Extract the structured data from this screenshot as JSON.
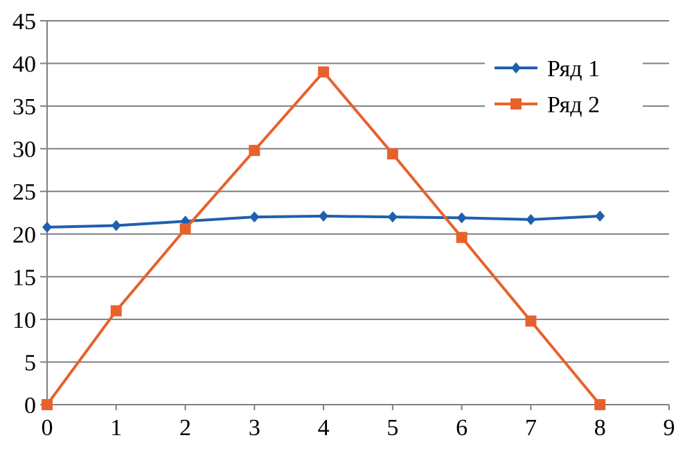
{
  "chart_data": {
    "type": "line",
    "title": "",
    "xlabel": "",
    "ylabel": "",
    "xlim": [
      0,
      9
    ],
    "ylim": [
      0,
      45
    ],
    "x_ticks": [
      0,
      1,
      2,
      3,
      4,
      5,
      6,
      7,
      8,
      9
    ],
    "y_ticks": [
      0,
      5,
      10,
      15,
      20,
      25,
      30,
      35,
      40,
      45
    ],
    "grid": "horizontal",
    "legend_position": "top-right",
    "x": [
      0,
      1,
      2,
      3,
      4,
      5,
      6,
      7,
      8
    ],
    "series": [
      {
        "name": "Ряд 1",
        "color": "#1f5fae",
        "marker": "diamond",
        "values": [
          20.8,
          21.0,
          21.5,
          22.0,
          22.1,
          22.0,
          21.9,
          21.7,
          22.1
        ]
      },
      {
        "name": "Ряд 2",
        "color": "#e8612c",
        "marker": "square",
        "values": [
          0,
          11,
          20.6,
          29.8,
          39,
          29.4,
          19.6,
          9.8,
          0
        ]
      }
    ]
  }
}
